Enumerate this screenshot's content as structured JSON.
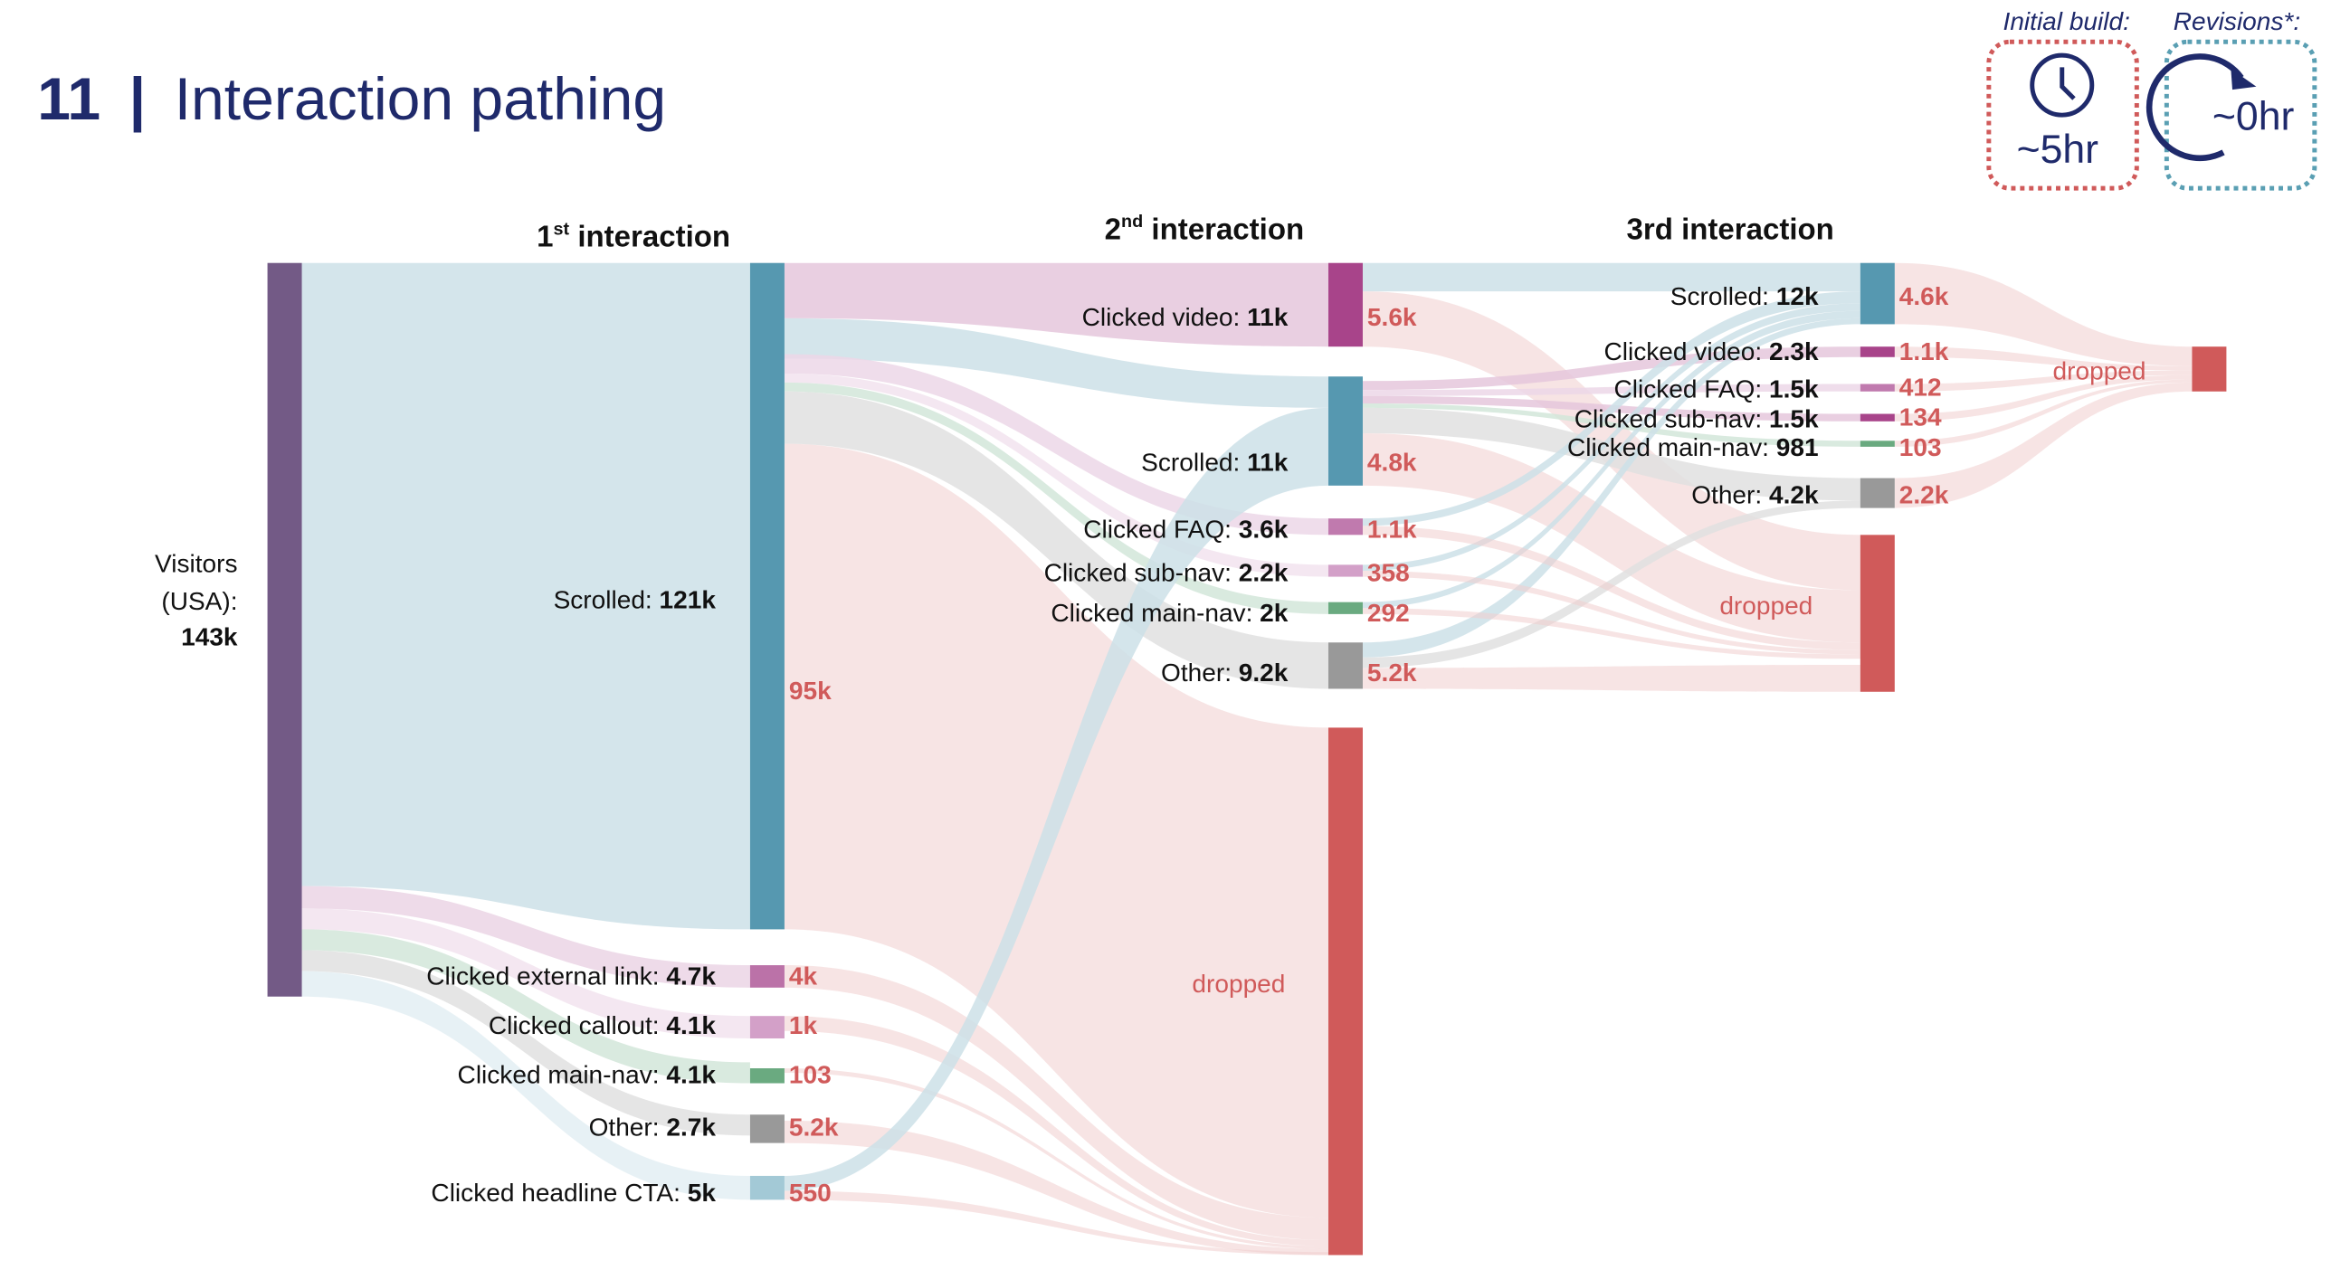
{
  "title": {
    "number": "11",
    "separator": "|",
    "text": "Interaction pathing"
  },
  "badges": [
    {
      "caption": "Initial build:",
      "value": "~5hr",
      "icon": "clock-icon",
      "color": "#d05a5a"
    },
    {
      "caption": "Revisions*:",
      "value": "~0hr",
      "icon": "refresh-arrow-icon",
      "color": "#5a9fb3"
    }
  ],
  "chart_data": {
    "type": "sankey",
    "column_headers": [
      {
        "main": "1",
        "sup": "st",
        "rest": " interaction"
      },
      {
        "main": "2",
        "sup": "nd",
        "rest": " interaction"
      },
      {
        "main": "3rd interaction",
        "sup": "",
        "rest": ""
      }
    ],
    "dropped_label": "dropped",
    "source": {
      "id": "visitors",
      "label_lines": [
        "Visitors",
        "(USA):"
      ],
      "value": "143k",
      "color": "#735a86"
    },
    "nodes": [
      {
        "id": "s1",
        "stage": 1,
        "label": "Scrolled: ",
        "value": "121k",
        "dropped": "95k",
        "color": "#5698b0"
      },
      {
        "id": "ext1",
        "stage": 1,
        "label": "Clicked external link: ",
        "value": "4.7k",
        "dropped": "4k",
        "color": "#bb72a8"
      },
      {
        "id": "call1",
        "stage": 1,
        "label": "Clicked callout: ",
        "value": "4.1k",
        "dropped": "1k",
        "color": "#d3a0c8"
      },
      {
        "id": "main1",
        "stage": 1,
        "label": "Clicked main-nav: ",
        "value": "4.1k",
        "dropped": "103",
        "color": "#6aaa80"
      },
      {
        "id": "oth1",
        "stage": 1,
        "label": "Other: ",
        "value": "2.7k",
        "dropped": "5.2k",
        "color": "#999999"
      },
      {
        "id": "cta1",
        "stage": 1,
        "label": "Clicked headline CTA: ",
        "value": "5k",
        "dropped": "550",
        "color": "#a3c9d6"
      },
      {
        "id": "vid2",
        "stage": 2,
        "label": "Clicked video: ",
        "value": "11k",
        "dropped": "5.6k",
        "color": "#a8448a"
      },
      {
        "id": "s2",
        "stage": 2,
        "label": "Scrolled: ",
        "value": "11k",
        "dropped": "4.8k",
        "color": "#5698b0"
      },
      {
        "id": "faq2",
        "stage": 2,
        "label": "Clicked FAQ: ",
        "value": "3.6k",
        "dropped": "1.1k",
        "color": "#c07aae"
      },
      {
        "id": "sub2",
        "stage": 2,
        "label": "Clicked sub-nav: ",
        "value": "2.2k",
        "dropped": "358",
        "color": "#d3a0c8"
      },
      {
        "id": "main2",
        "stage": 2,
        "label": "Clicked main-nav: ",
        "value": "2k",
        "dropped": "292",
        "color": "#6aaa80"
      },
      {
        "id": "oth2",
        "stage": 2,
        "label": "Other: ",
        "value": "9.2k",
        "dropped": "5.2k",
        "color": "#999999"
      },
      {
        "id": "drop2",
        "stage": 2,
        "label": "",
        "value": "",
        "dropped": "",
        "color": "#d05a5a",
        "is_dropped": true
      },
      {
        "id": "s3",
        "stage": 3,
        "label": "Scrolled: ",
        "value": "12k",
        "dropped": "4.6k",
        "color": "#5698b0"
      },
      {
        "id": "vid3",
        "stage": 3,
        "label": "Clicked video: ",
        "value": "2.3k",
        "dropped": "1.1k",
        "color": "#a8448a"
      },
      {
        "id": "faq3",
        "stage": 3,
        "label": "Clicked FAQ: ",
        "value": "1.5k",
        "dropped": "412",
        "color": "#c07aae"
      },
      {
        "id": "sub3",
        "stage": 3,
        "label": "Clicked sub-nav: ",
        "value": "1.5k",
        "dropped": "134",
        "color": "#a8448a"
      },
      {
        "id": "main3",
        "stage": 3,
        "label": "Clicked main-nav: ",
        "value": "981",
        "dropped": "103",
        "color": "#6aaa80"
      },
      {
        "id": "oth3",
        "stage": 3,
        "label": "Other: ",
        "value": "4.2k",
        "dropped": "2.2k",
        "color": "#999999"
      },
      {
        "id": "drop3",
        "stage": 3,
        "label": "",
        "value": "",
        "dropped": "",
        "color": "#d05a5a",
        "is_dropped": true
      },
      {
        "id": "drop4",
        "stage": 4,
        "label": "",
        "value": "",
        "dropped": "",
        "color": "#d05a5a",
        "is_dropped": true
      }
    ],
    "links": [
      {
        "source": "visitors",
        "target": "s1"
      },
      {
        "source": "visitors",
        "target": "ext1"
      },
      {
        "source": "visitors",
        "target": "call1"
      },
      {
        "source": "visitors",
        "target": "main1"
      },
      {
        "source": "visitors",
        "target": "oth1"
      },
      {
        "source": "visitors",
        "target": "cta1"
      },
      {
        "source": "s1",
        "target": "vid2"
      },
      {
        "source": "s1",
        "target": "s2"
      },
      {
        "source": "s1",
        "target": "faq2"
      },
      {
        "source": "s1",
        "target": "sub2"
      },
      {
        "source": "s1",
        "target": "main2"
      },
      {
        "source": "s1",
        "target": "oth2"
      },
      {
        "source": "s1",
        "target": "drop2"
      },
      {
        "source": "ext1",
        "target": "drop2"
      },
      {
        "source": "call1",
        "target": "drop2"
      },
      {
        "source": "main1",
        "target": "drop2"
      },
      {
        "source": "oth1",
        "target": "drop2"
      },
      {
        "source": "cta1",
        "target": "s2"
      },
      {
        "source": "cta1",
        "target": "drop2"
      },
      {
        "source": "vid2",
        "target": "s3"
      },
      {
        "source": "vid2",
        "target": "drop3"
      },
      {
        "source": "s2",
        "target": "vid3"
      },
      {
        "source": "s2",
        "target": "faq3"
      },
      {
        "source": "s2",
        "target": "sub3"
      },
      {
        "source": "s2",
        "target": "main3"
      },
      {
        "source": "s2",
        "target": "oth3"
      },
      {
        "source": "s2",
        "target": "drop3"
      },
      {
        "source": "faq2",
        "target": "s3"
      },
      {
        "source": "sub2",
        "target": "s3"
      },
      {
        "source": "main2",
        "target": "s3"
      },
      {
        "source": "oth2",
        "target": "s3"
      },
      {
        "source": "oth2",
        "target": "oth3"
      },
      {
        "source": "oth2",
        "target": "drop3"
      },
      {
        "source": "faq2",
        "target": "drop3"
      },
      {
        "source": "sub2",
        "target": "drop3"
      },
      {
        "source": "main2",
        "target": "drop3"
      },
      {
        "source": "s3",
        "target": "drop4"
      },
      {
        "source": "vid3",
        "target": "drop4"
      },
      {
        "source": "faq3",
        "target": "drop4"
      },
      {
        "source": "sub3",
        "target": "drop4"
      },
      {
        "source": "main3",
        "target": "drop4"
      },
      {
        "source": "oth3",
        "target": "drop4"
      }
    ]
  }
}
